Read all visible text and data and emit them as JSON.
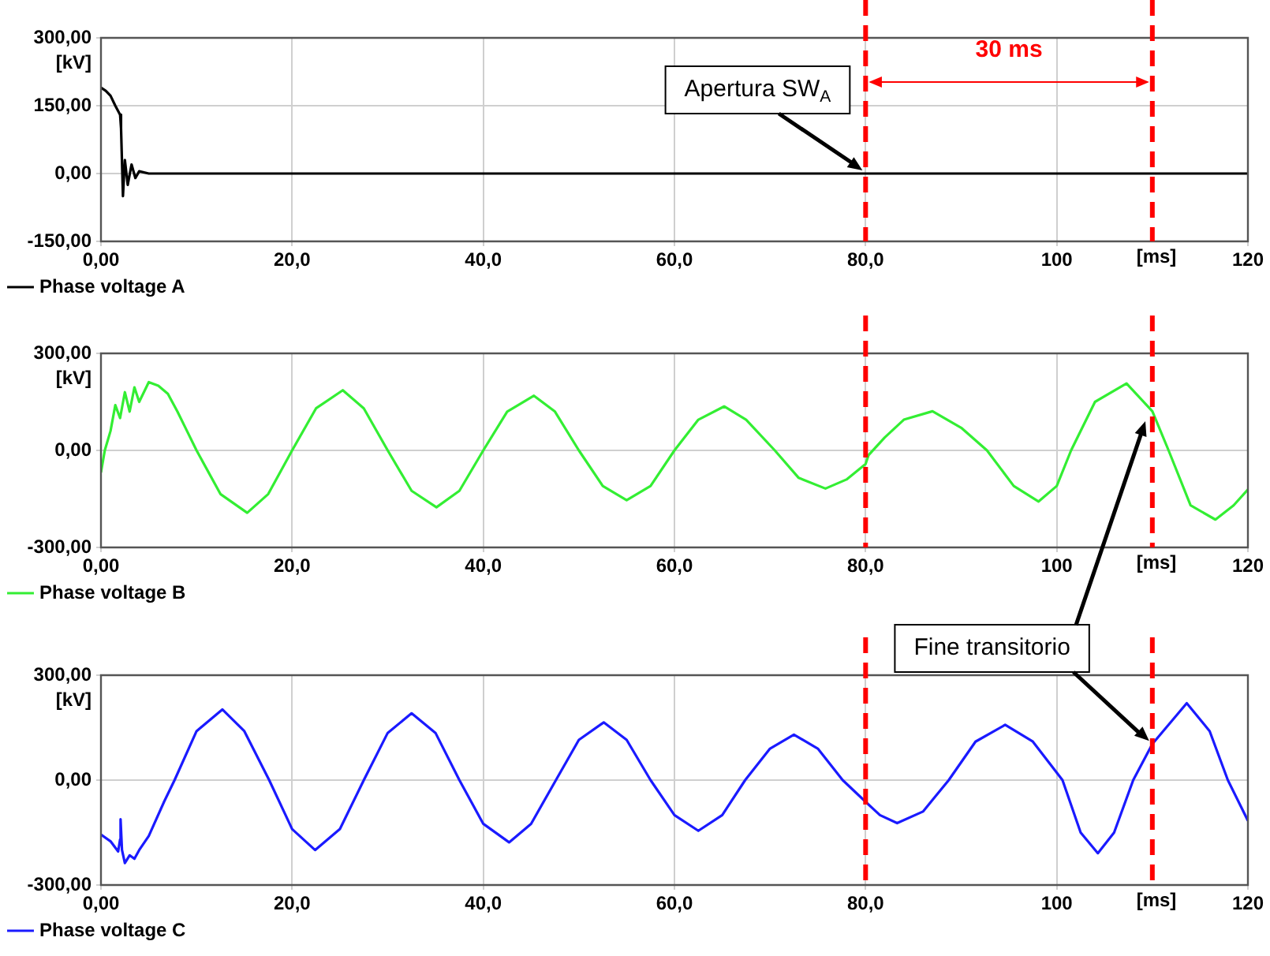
{
  "chart_data": [
    {
      "type": "line",
      "xlabel": "[ms]",
      "ylabel": "[kV]",
      "xlim": [
        0,
        120
      ],
      "ylim": [
        -150,
        300
      ],
      "xticks": [
        {
          "value": 0,
          "label": "0,00"
        },
        {
          "value": 20,
          "label": "20,0"
        },
        {
          "value": 40,
          "label": "40,0"
        },
        {
          "value": 60,
          "label": "60,0"
        },
        {
          "value": 80,
          "label": "80,0"
        },
        {
          "value": 100,
          "label": "100"
        },
        {
          "value": 120,
          "label": "120"
        }
      ],
      "yticks": [
        {
          "value": -150,
          "label": "-150,00"
        },
        {
          "value": 0,
          "label": "0,00"
        },
        {
          "value": 150,
          "label": "150,00"
        },
        {
          "value": 300,
          "label": "300,00"
        }
      ],
      "x": [
        0,
        0.5,
        1,
        1.5,
        2,
        2.1,
        2.3,
        2.5,
        2.8,
        3.2,
        3.6,
        4,
        5,
        120
      ],
      "series": [
        {
          "name": "Phase voltage A",
          "color": "#000000",
          "values": [
            190,
            183,
            172,
            150,
            130,
            100,
            -50,
            30,
            -25,
            20,
            -10,
            5,
            0,
            0
          ]
        }
      ],
      "ref_lines": [
        {
          "axis": "x",
          "value": 80,
          "color": "#ff0000",
          "line_style": "dashed"
        },
        {
          "axis": "x",
          "value": 110,
          "color": "#ff0000",
          "line_style": "dashed"
        }
      ],
      "annotations": [
        {
          "text": "Apertura SW$_{A}$",
          "x": 80,
          "y": 0
        },
        "30 ms"
      ],
      "grid": true,
      "legend": "bottom left",
      "marker": "none",
      "line_style": "solid"
    },
    {
      "type": "line",
      "xlabel": "[ms]",
      "ylabel": "[kV]",
      "xlim": [
        0,
        120
      ],
      "ylim": [
        -300,
        300
      ],
      "xticks": [
        {
          "value": 0,
          "label": "0,00"
        },
        {
          "value": 20,
          "label": "20,0"
        },
        {
          "value": 40,
          "label": "40,0"
        },
        {
          "value": 60,
          "label": "60,0"
        },
        {
          "value": 80,
          "label": "80,0"
        },
        {
          "value": 100,
          "label": "100"
        },
        {
          "value": 120,
          "label": "120"
        }
      ],
      "yticks": [
        {
          "value": -300,
          "label": "-300,00"
        },
        {
          "value": 0,
          "label": "0,00"
        },
        {
          "value": 300,
          "label": "300,00"
        }
      ],
      "x": [
        0,
        0.4,
        1,
        1.5,
        2,
        2.5,
        3,
        3.5,
        4,
        5,
        6,
        7,
        8,
        9,
        10,
        12.5,
        15.3,
        17.5,
        20,
        22.5,
        25.3,
        27.5,
        30,
        32.5,
        35.1,
        37.5,
        40,
        42.5,
        45.3,
        47.5,
        50,
        52.5,
        55,
        57.5,
        60,
        62.5,
        65.2,
        67.5,
        70.5,
        73,
        75.8,
        78,
        80,
        80.3,
        82,
        84,
        87,
        90,
        92.7,
        95.5,
        98.1,
        100,
        101.5,
        104,
        107.3,
        110,
        111.7,
        114,
        116.6,
        118.5,
        120
      ],
      "series": [
        {
          "name": "Phase voltage B",
          "color": "#33ee33",
          "values": [
            -68,
            0,
            60,
            140,
            100,
            180,
            120,
            195,
            150,
            211,
            200,
            175,
            120,
            60,
            0,
            -135,
            -193,
            -135,
            0,
            130,
            186,
            130,
            0,
            -125,
            -176,
            -125,
            0,
            120,
            169,
            120,
            0,
            -110,
            -154,
            -110,
            0,
            95,
            136,
            95,
            0,
            -85,
            -118,
            -90,
            -42,
            -15,
            40,
            95,
            121,
            70,
            0,
            -110,
            -158,
            -110,
            0,
            150,
            207,
            121,
            0,
            -170,
            -214,
            -170,
            -121
          ]
        }
      ],
      "ref_lines": [
        {
          "axis": "x",
          "value": 80,
          "color": "#ff0000",
          "line_style": "dashed"
        },
        {
          "axis": "x",
          "value": 110,
          "color": "#ff0000",
          "line_style": "dashed"
        }
      ],
      "grid": true,
      "legend": "bottom left",
      "marker": "none",
      "line_style": "solid"
    },
    {
      "type": "line",
      "xlabel": "[ms]",
      "ylabel": "[kV]",
      "xlim": [
        0,
        120
      ],
      "ylim": [
        -300,
        300
      ],
      "xticks": [
        {
          "value": 0,
          "label": "0,00"
        },
        {
          "value": 20,
          "label": "20,0"
        },
        {
          "value": 40,
          "label": "40,0"
        },
        {
          "value": 60,
          "label": "60,0"
        },
        {
          "value": 80,
          "label": "80,0"
        },
        {
          "value": 100,
          "label": "100"
        },
        {
          "value": 120,
          "label": "120"
        }
      ],
      "yticks": [
        {
          "value": -300,
          "label": "-300,00"
        },
        {
          "value": 0,
          "label": "0,00"
        },
        {
          "value": 300,
          "label": "300,00"
        }
      ],
      "x": [
        0,
        1,
        1.8,
        2,
        2.05,
        2.2,
        2.5,
        3,
        3.5,
        4,
        5,
        6.6,
        7.7,
        10,
        12.7,
        15,
        17.6,
        20,
        22.4,
        25,
        27.5,
        30,
        32.5,
        35,
        37.5,
        40,
        42.7,
        45,
        47.6,
        50,
        52.6,
        55,
        57.5,
        60,
        62.5,
        65,
        67.4,
        70,
        72.5,
        75,
        77.6,
        80,
        81.5,
        83.3,
        86,
        88.7,
        91.5,
        94.6,
        97.5,
        100.6,
        102.5,
        104.3,
        106,
        108,
        110,
        113.6,
        116,
        117.9,
        120
      ],
      "series": [
        {
          "name": "Phase voltage C",
          "color": "#1a1aff",
          "values": [
            -156,
            -175,
            -204,
            -170,
            -112,
            -200,
            -237,
            -215,
            -225,
            -200,
            -160,
            -62,
            0,
            140,
            202,
            140,
            0,
            -140,
            -200,
            -140,
            0,
            135,
            191,
            135,
            0,
            -125,
            -178,
            -125,
            0,
            115,
            165,
            115,
            0,
            -100,
            -145,
            -100,
            0,
            90,
            130,
            90,
            0,
            -62,
            -100,
            -123,
            -90,
            0,
            110,
            158,
            110,
            0,
            -150,
            -209,
            -150,
            0,
            103,
            220,
            140,
            0,
            -116
          ]
        }
      ],
      "ref_lines": [
        {
          "axis": "x",
          "value": 80,
          "color": "#ff0000",
          "line_style": "dashed"
        },
        {
          "axis": "x",
          "value": 110,
          "color": "#ff0000",
          "line_style": "dashed"
        }
      ],
      "annotations": [
        {
          "text": "Fine transitorio",
          "x": 110,
          "y": 103
        }
      ],
      "grid": true,
      "legend": "bottom left",
      "marker": "none",
      "line_style": "solid"
    }
  ]
}
